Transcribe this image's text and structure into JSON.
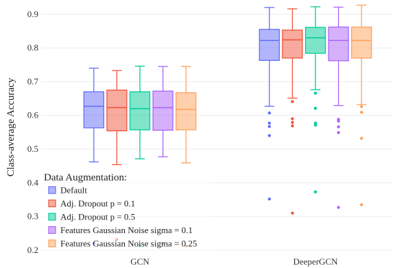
{
  "chart_data": {
    "type": "box",
    "ylabel": "Class-average Accuracy",
    "xlabel": "",
    "ylim": [
      0.2,
      0.93
    ],
    "yticks": [
      0.2,
      0.3,
      0.4,
      0.5,
      0.6,
      0.7,
      0.8,
      0.9
    ],
    "grid": true,
    "legend_position": "bottom-left",
    "legend_title": "Data Augmentation:",
    "categories": [
      "GCN",
      "DeeperGCN"
    ],
    "series": [
      {
        "name": "Default",
        "color": "#636efa",
        "boxes": [
          {
            "min": 0.462,
            "q1": 0.563,
            "median": 0.627,
            "q3": 0.67,
            "max": 0.74,
            "outliers": [
              0.22
            ]
          },
          {
            "min": 0.627,
            "q1": 0.763,
            "median": 0.822,
            "q3": 0.855,
            "max": 0.92,
            "outliers": [
              0.607,
              0.577,
              0.567,
              0.54,
              0.352
            ]
          }
        ]
      },
      {
        "name": "Adj. Dropout p = 0.1",
        "color": "#ef553b",
        "boxes": [
          {
            "min": 0.454,
            "q1": 0.554,
            "median": 0.623,
            "q3": 0.675,
            "max": 0.733,
            "outliers": [
              0.232
            ]
          },
          {
            "min": 0.651,
            "q1": 0.77,
            "median": 0.824,
            "q3": 0.853,
            "max": 0.916,
            "outliers": [
              0.641,
              0.59,
              0.579,
              0.569,
              0.31
            ]
          }
        ]
      },
      {
        "name": "Adj. Dropout p = 0.5",
        "color": "#00cc96",
        "boxes": [
          {
            "min": 0.471,
            "q1": 0.557,
            "median": 0.62,
            "q3": 0.67,
            "max": 0.746,
            "outliers": [
              0.214
            ]
          },
          {
            "min": 0.676,
            "q1": 0.784,
            "median": 0.83,
            "q3": 0.861,
            "max": 0.922,
            "outliers": [
              0.666,
              0.621,
              0.577,
              0.571,
              0.373
            ]
          }
        ]
      },
      {
        "name": "Features Gaussian Noise sigma = 0.1",
        "color": "#ab63fa",
        "boxes": [
          {
            "min": 0.477,
            "q1": 0.556,
            "median": 0.623,
            "q3": 0.672,
            "max": 0.745,
            "outliers": [
              0.219
            ]
          },
          {
            "min": 0.629,
            "q1": 0.762,
            "median": 0.822,
            "q3": 0.862,
            "max": 0.921,
            "outliers": [
              0.588,
              0.583,
              0.566,
              0.549,
              0.327
            ]
          }
        ]
      },
      {
        "name": "Features Gaussian Noise sigma = 0.25",
        "color": "#ffa15a",
        "boxes": [
          {
            "min": 0.459,
            "q1": 0.557,
            "median": 0.618,
            "q3": 0.667,
            "max": 0.745,
            "outliers": [
              0.212
            ]
          },
          {
            "min": 0.632,
            "q1": 0.77,
            "median": 0.822,
            "q3": 0.862,
            "max": 0.927,
            "outliers": [
              0.626,
              0.609,
              0.532,
              0.335
            ]
          }
        ]
      }
    ]
  }
}
